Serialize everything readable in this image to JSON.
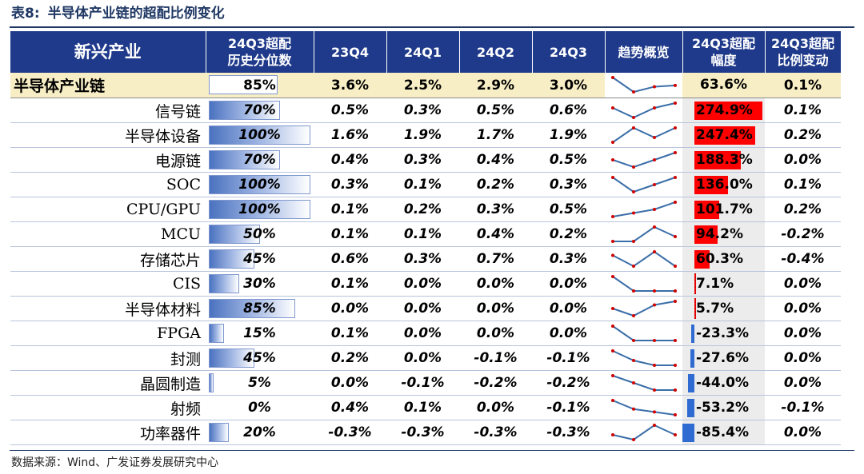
{
  "title": {
    "number": "表8:",
    "text": "半导体产业链的超配比例变化"
  },
  "header": {
    "name": "新兴产业",
    "pct_line1": "24Q3超配",
    "pct_line2": "历史分位数",
    "q1": "23Q4",
    "q2": "24Q1",
    "q3": "24Q2",
    "q4": "24Q3",
    "trend": "趋势概览",
    "amp_line1": "24Q3超配",
    "amp_line2": "幅度",
    "chg_line1": "24Q3超配",
    "chg_line2": "比例变动"
  },
  "colors": {
    "header_bg": "#1f3a8a",
    "summary_bg": "#f7eec5",
    "positive_bar": "#ff0000",
    "negative_bar": "#2f6bd0",
    "trend_line": "#3b6ea8",
    "trend_point": "#d00000"
  },
  "rows": [
    {
      "name": "半导体产业链",
      "summary": true,
      "pct": "85%",
      "pct_value": 85,
      "q": [
        "3.6%",
        "2.5%",
        "2.9%",
        "3.0%"
      ],
      "trend": [
        3.6,
        2.5,
        2.9,
        3.0
      ],
      "amp": "63.6%",
      "amp_value": 63.6,
      "chg": "0.1%"
    },
    {
      "name": "信号链",
      "pct": "70%",
      "pct_value": 70,
      "q": [
        "0.5%",
        "0.3%",
        "0.5%",
        "0.6%"
      ],
      "trend": [
        0.5,
        0.3,
        0.5,
        0.6
      ],
      "amp": "274.9%",
      "amp_value": 274.9,
      "chg": "0.1%"
    },
    {
      "name": "半导体设备",
      "pct": "100%",
      "pct_value": 100,
      "q": [
        "1.6%",
        "1.9%",
        "1.7%",
        "1.9%"
      ],
      "trend": [
        1.6,
        1.9,
        1.7,
        1.9
      ],
      "amp": "247.4%",
      "amp_value": 247.4,
      "chg": "0.2%"
    },
    {
      "name": "电源链",
      "pct": "70%",
      "pct_value": 70,
      "q": [
        "0.4%",
        "0.3%",
        "0.4%",
        "0.5%"
      ],
      "trend": [
        0.4,
        0.3,
        0.4,
        0.5
      ],
      "amp": "188.3%",
      "amp_value": 188.3,
      "chg": "0.0%"
    },
    {
      "name": "SOC",
      "pct": "100%",
      "pct_value": 100,
      "q": [
        "0.3%",
        "0.1%",
        "0.2%",
        "0.3%"
      ],
      "trend": [
        0.3,
        0.1,
        0.2,
        0.3
      ],
      "amp": "136.0%",
      "amp_value": 136.0,
      "chg": "0.1%"
    },
    {
      "name": "CPU/GPU",
      "pct": "100%",
      "pct_value": 100,
      "q": [
        "0.1%",
        "0.2%",
        "0.3%",
        "0.5%"
      ],
      "trend": [
        0.1,
        0.2,
        0.3,
        0.5
      ],
      "amp": "101.7%",
      "amp_value": 101.7,
      "chg": "0.2%"
    },
    {
      "name": "MCU",
      "pct": "50%",
      "pct_value": 50,
      "q": [
        "0.1%",
        "0.1%",
        "0.4%",
        "0.2%"
      ],
      "trend": [
        0.1,
        0.1,
        0.4,
        0.2
      ],
      "amp": "94.2%",
      "amp_value": 94.2,
      "chg": "-0.2%"
    },
    {
      "name": "存储芯片",
      "pct": "45%",
      "pct_value": 45,
      "q": [
        "0.6%",
        "0.3%",
        "0.7%",
        "0.3%"
      ],
      "trend": [
        0.6,
        0.3,
        0.7,
        0.3
      ],
      "amp": "60.3%",
      "amp_value": 60.3,
      "chg": "-0.4%"
    },
    {
      "name": "CIS",
      "pct": "30%",
      "pct_value": 30,
      "q": [
        "0.1%",
        "0.0%",
        "0.0%",
        "0.0%"
      ],
      "trend": [
        0.1,
        0.0,
        0.0,
        0.0
      ],
      "amp": "7.1%",
      "amp_value": 7.1,
      "chg": "0.0%"
    },
    {
      "name": "半导体材料",
      "pct": "85%",
      "pct_value": 85,
      "q": [
        "0.0%",
        "0.0%",
        "0.0%",
        "0.0%"
      ],
      "trend": [
        0.0,
        -0.02,
        0.01,
        0.02
      ],
      "amp": "5.7%",
      "amp_value": 5.7,
      "chg": "0.0%"
    },
    {
      "name": "FPGA",
      "pct": "15%",
      "pct_value": 15,
      "q": [
        "0.1%",
        "0.0%",
        "0.0%",
        "0.0%"
      ],
      "trend": [
        0.1,
        0.0,
        0.0,
        0.0
      ],
      "amp": "-23.3%",
      "amp_value": -23.3,
      "chg": "0.0%"
    },
    {
      "name": "封测",
      "pct": "45%",
      "pct_value": 45,
      "q": [
        "0.2%",
        "0.0%",
        "-0.1%",
        "-0.1%"
      ],
      "trend": [
        0.2,
        0.0,
        -0.1,
        -0.1
      ],
      "amp": "-27.6%",
      "amp_value": -27.6,
      "chg": "0.0%"
    },
    {
      "name": "晶圆制造",
      "pct": "5%",
      "pct_value": 5,
      "q": [
        "0.0%",
        "-0.1%",
        "-0.2%",
        "-0.2%"
      ],
      "trend": [
        0.0,
        -0.1,
        -0.2,
        -0.2
      ],
      "amp": "-44.0%",
      "amp_value": -44.0,
      "chg": "0.0%"
    },
    {
      "name": "射频",
      "pct": "0%",
      "pct_value": 0,
      "q": [
        "0.4%",
        "0.1%",
        "0.0%",
        "-0.1%"
      ],
      "trend": [
        0.4,
        0.1,
        0.0,
        -0.1
      ],
      "amp": "-53.2%",
      "amp_value": -53.2,
      "chg": "-0.1%"
    },
    {
      "name": "功率器件",
      "pct": "20%",
      "pct_value": 20,
      "q": [
        "-0.3%",
        "-0.3%",
        "-0.3%",
        "-0.3%"
      ],
      "trend": [
        -0.3,
        -0.31,
        -0.28,
        -0.3
      ],
      "amp": "-85.4%",
      "amp_value": -85.4,
      "chg": "0.0%"
    }
  ],
  "source": "数据来源：Wind、广发证券发展研究中心"
}
